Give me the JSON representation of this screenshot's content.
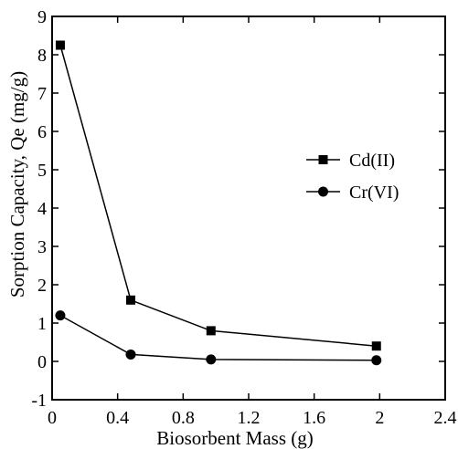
{
  "chart_data": {
    "type": "line",
    "xlabel": "Biosorbent Mass (g)",
    "ylabel": "Sorption Capacity, Qe (mg/g)",
    "xlim": [
      0,
      2.4
    ],
    "ylim": [
      -1,
      9
    ],
    "xticks": [
      "0",
      "0.4",
      "0.8",
      "1.2",
      "1.6",
      "2",
      "2.4"
    ],
    "yticks": [
      "-1",
      "0",
      "1",
      "2",
      "3",
      "4",
      "5",
      "6",
      "7",
      "8",
      "9"
    ],
    "grid": false,
    "legend_position": "right",
    "series": [
      {
        "name": "Cd(II)",
        "marker": "square",
        "x": [
          0.05,
          0.48,
          0.97,
          1.98
        ],
        "y": [
          8.25,
          1.6,
          0.8,
          0.4
        ]
      },
      {
        "name": "Cr(VI)",
        "marker": "circle",
        "x": [
          0.05,
          0.48,
          0.97,
          1.98
        ],
        "y": [
          1.2,
          0.18,
          0.05,
          0.03
        ]
      }
    ]
  }
}
